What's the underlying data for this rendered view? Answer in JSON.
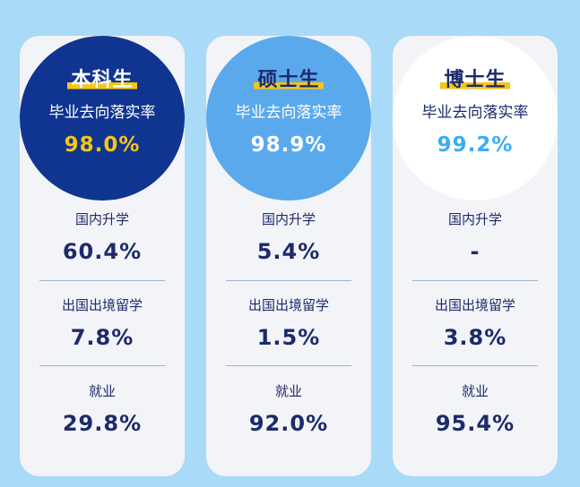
{
  "columns": [
    {
      "degree": "本科生",
      "subtitle": "毕业去向落实率",
      "rate": "98.0%",
      "circle_bg": "#0f3590",
      "degree_color": "#ffffff",
      "subtitle_color": "#ffffff",
      "rate_color": "#f5c518",
      "stats": [
        {
          "label": "国内升学",
          "value": "60.4%"
        },
        {
          "label": "出国出境留学",
          "value": "7.8%"
        },
        {
          "label": "就业",
          "value": "29.8%"
        }
      ]
    },
    {
      "degree": "硕士生",
      "subtitle": "毕业去向落实率",
      "rate": "98.9%",
      "circle_bg": "#5aa9ec",
      "degree_color": "#1d2a6b",
      "subtitle_color": "#ffffff",
      "rate_color": "#ffffff",
      "stats": [
        {
          "label": "国内升学",
          "value": "5.4%"
        },
        {
          "label": "出国出境留学",
          "value": "1.5%"
        },
        {
          "label": "就业",
          "value": "92.0%"
        }
      ]
    },
    {
      "degree": "博士生",
      "subtitle": "毕业去向落实率",
      "rate": "99.2%",
      "circle_bg": "#ffffff",
      "degree_color": "#1d2a6b",
      "subtitle_color": "#1d2a6b",
      "rate_color": "#3aaef0",
      "stats": [
        {
          "label": "国内升学",
          "value": "-"
        },
        {
          "label": "出国出境留学",
          "value": "3.8%"
        },
        {
          "label": "就业",
          "value": "95.4%"
        }
      ]
    }
  ]
}
